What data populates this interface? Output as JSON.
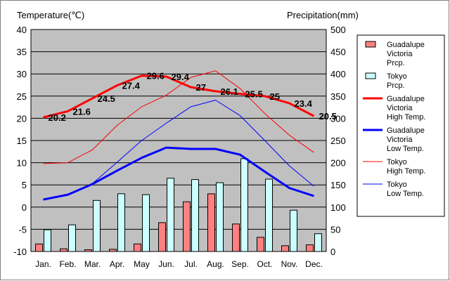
{
  "chart_data": {
    "type": "bar+line",
    "left_axis_label": "Temperature(℃)",
    "right_axis_label": "Precipitation(mm)",
    "categories": [
      "Jan.",
      "Feb.",
      "Mar.",
      "Apr.",
      "May",
      "Jun.",
      "Jul.",
      "Aug.",
      "Sep.",
      "Oct.",
      "Nov.",
      "Dec."
    ],
    "left_ylim": [
      -10,
      40
    ],
    "left_ticks": [
      -10,
      -5,
      0,
      5,
      10,
      15,
      20,
      25,
      30,
      35,
      40
    ],
    "right_ylim": [
      0,
      500
    ],
    "right_ticks": [
      0,
      50,
      100,
      150,
      200,
      250,
      300,
      350,
      400,
      450,
      500
    ],
    "grid": "horizontal",
    "plot_background": "#c0c0c0",
    "legend_position": "right",
    "bar_series": [
      {
        "name": "Guadalupe Victoria Prcp.",
        "legend_lines": [
          "Guadalupe",
          "Victoria",
          "Prcp."
        ],
        "color": "#ff8080",
        "values": [
          17,
          6,
          4,
          5,
          17,
          65,
          112,
          130,
          62,
          32,
          13,
          15
        ]
      },
      {
        "name": "Tokyo Prcp.",
        "legend_lines": [
          "Tokyo",
          "Prcp."
        ],
        "color": "#ccffff",
        "values": [
          49,
          60,
          115,
          130,
          128,
          165,
          162,
          155,
          209,
          163,
          93,
          40
        ]
      }
    ],
    "line_series": [
      {
        "name": "Guadalupe Victoria High Temp.",
        "legend_lines": [
          "Guadalupe",
          "Victoria",
          "High Temp."
        ],
        "color": "#ff0000",
        "width": 3,
        "values": [
          20.2,
          21.6,
          24.5,
          27.4,
          29.6,
          29.4,
          27,
          26.1,
          25.5,
          25,
          23.4,
          20.5
        ],
        "data_labels": [
          "20.2",
          "21.6",
          "24.5",
          "27.4",
          "29.6",
          "29.4",
          "27",
          "26.1",
          "25.5",
          "25",
          "23.4",
          "20.5"
        ]
      },
      {
        "name": "Guadalupe Victoria Low Temp.",
        "legend_lines": [
          "Guadalupe",
          "Victoria",
          "Low Temp."
        ],
        "color": "#0000ff",
        "width": 3,
        "values": [
          1.7,
          2.8,
          5.2,
          8.2,
          11.1,
          13.4,
          13.1,
          13.1,
          11.8,
          8.0,
          4.3,
          2.5
        ]
      },
      {
        "name": "Tokyo High Temp.",
        "legend_lines": [
          "Tokyo",
          "High Temp."
        ],
        "color": "#ff0000",
        "width": 1,
        "values": [
          9.8,
          10.0,
          12.9,
          18.4,
          22.6,
          25.2,
          29.2,
          30.7,
          26.7,
          21.1,
          16.2,
          12.3
        ]
      },
      {
        "name": "Tokyo Low Temp.",
        "legend_lines": [
          "Tokyo",
          "Low Temp."
        ],
        "color": "#0000ff",
        "width": 1,
        "values": [
          1.6,
          2.7,
          5.3,
          10.1,
          15.0,
          18.9,
          22.6,
          24.1,
          20.6,
          15.0,
          9.3,
          4.7
        ]
      }
    ]
  }
}
